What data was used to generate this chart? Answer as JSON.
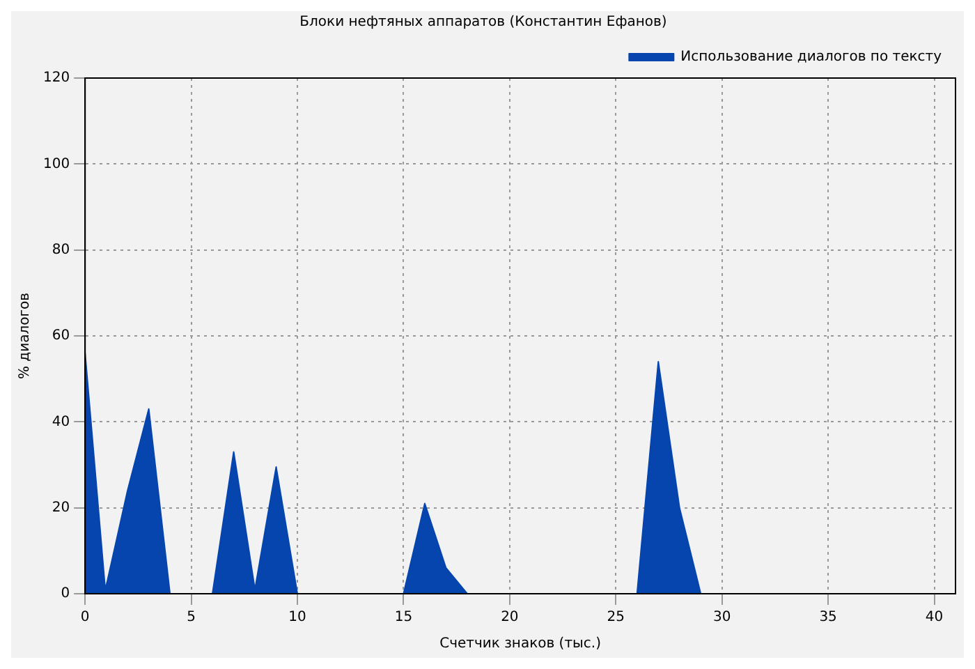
{
  "chart_data": {
    "type": "area",
    "title": "Блоки нефтяных аппаратов (Константин Ефанов)",
    "xlabel": "Счетчик знаков (тыс.)",
    "ylabel": "% диалогов",
    "x": [
      0,
      0.95,
      1.05,
      2,
      3,
      4,
      6,
      7,
      8,
      9,
      10,
      15,
      16,
      17,
      18,
      26,
      27,
      28,
      29,
      40
    ],
    "series": [
      {
        "name": "Использование диалогов по тексту",
        "color": "#0645ad",
        "values": [
          56,
          1,
          3,
          24,
          43,
          0,
          0,
          33,
          1,
          29.5,
          0,
          0,
          21,
          6,
          0,
          0,
          54,
          20,
          0,
          0
        ]
      }
    ],
    "xlim": [
      0,
      41
    ],
    "xticks": [
      0,
      5,
      10,
      15,
      20,
      25,
      30,
      35,
      40
    ],
    "ylim": [
      0,
      120
    ],
    "yticks": [
      0,
      20,
      40,
      60,
      80,
      100,
      120
    ],
    "grid": true,
    "legend": "top right"
  }
}
